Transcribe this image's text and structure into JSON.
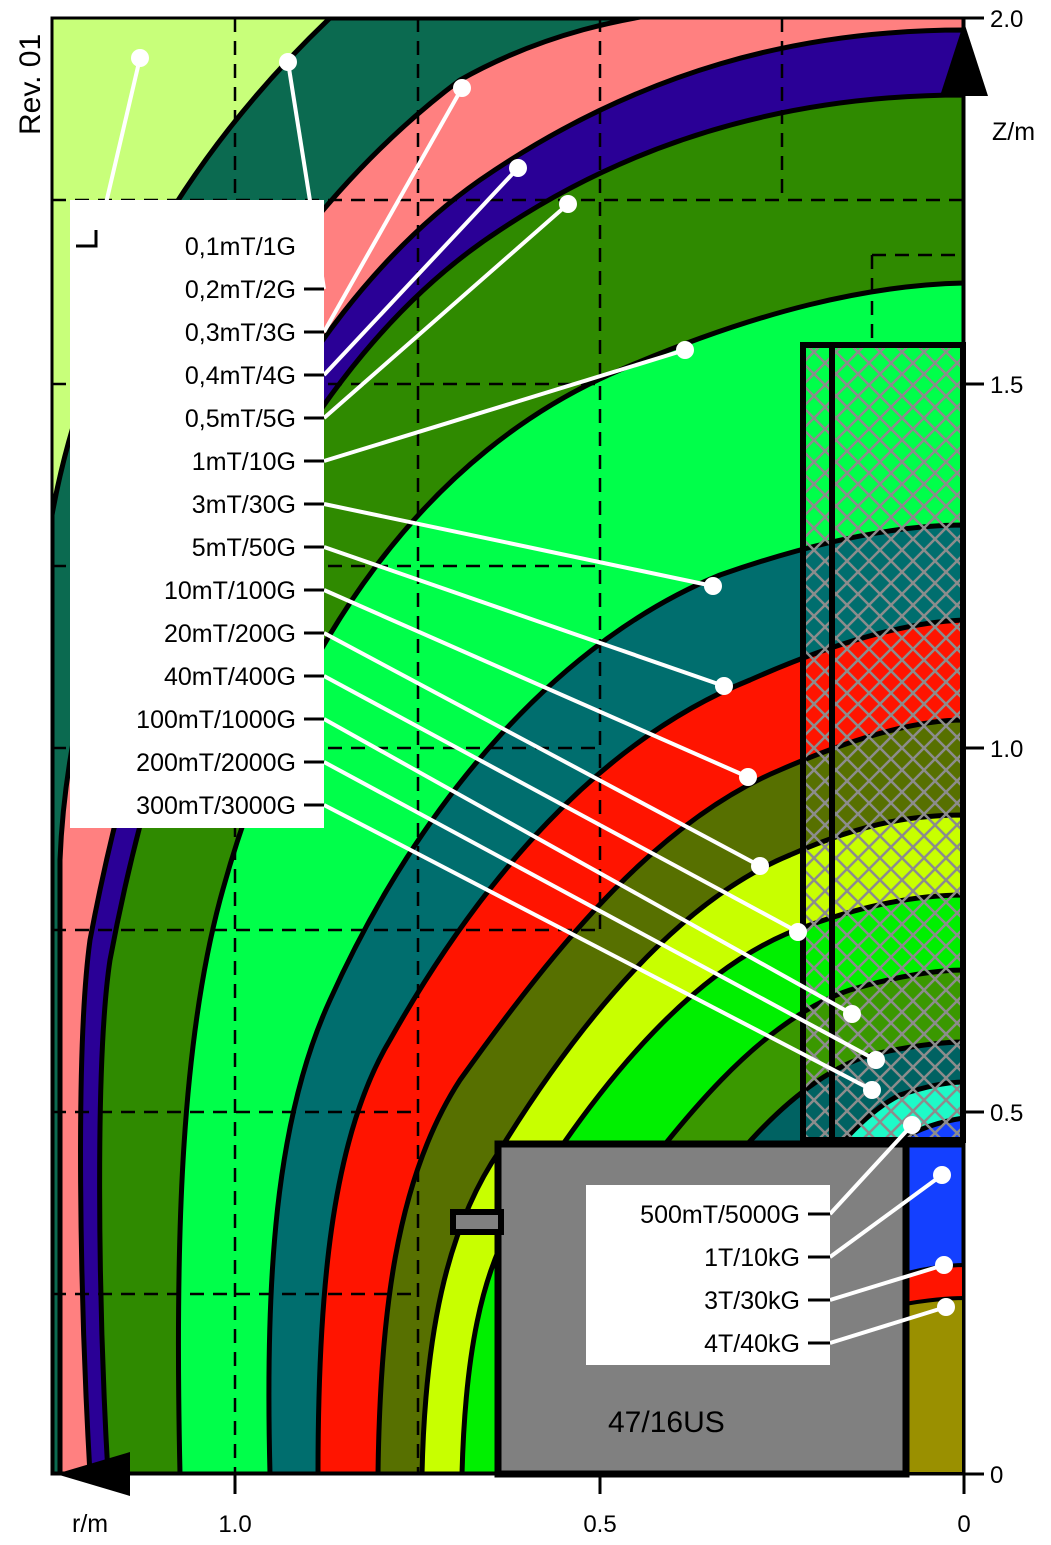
{
  "revision": "Rev. 01",
  "model": "47/16US",
  "axes": {
    "z_label": "Z/m",
    "r_label": "r/m",
    "z_ticks": [
      "2.0",
      "1.5",
      "1.0",
      "0.5",
      "0"
    ],
    "r_ticks": [
      "1.0",
      "0.5",
      "0"
    ]
  },
  "field_labels": {
    "outer": [
      "0,1mT/1G",
      "0,2mT/2G",
      "0,3mT/3G",
      "0,4mT/4G",
      "0,5mT/5G",
      "1mT/10G",
      "3mT/30G",
      "5mT/50G",
      "10mT/100G",
      "20mT/200G",
      "40mT/400G",
      "100mT/1000G",
      "200mT/2000G",
      "300mT/3000G"
    ],
    "inner": [
      "500mT/5000G",
      "1T/10kG",
      "3T/30kG",
      "4T/40kG"
    ]
  },
  "colors": {
    "0.1mT": "#c8ff7a",
    "0.2mT": "#0b6a50",
    "0.3mT": "#ff8080",
    "0.4mT": "#2a0096",
    "0.5mT": "#2f8a00",
    "1mT": "#00ff4a",
    "3mT": "#006e6e",
    "5mT": "#ff1400",
    "10mT": "#577000",
    "20mT": "#c8ff00",
    "40mT": "#00f000",
    "100mT": "#3a9800",
    "200mT": "#006262",
    "300mT": "#1efac8",
    "1T": "#1440ff",
    "4T": "#9a9000",
    "magnet": "#808080"
  }
}
